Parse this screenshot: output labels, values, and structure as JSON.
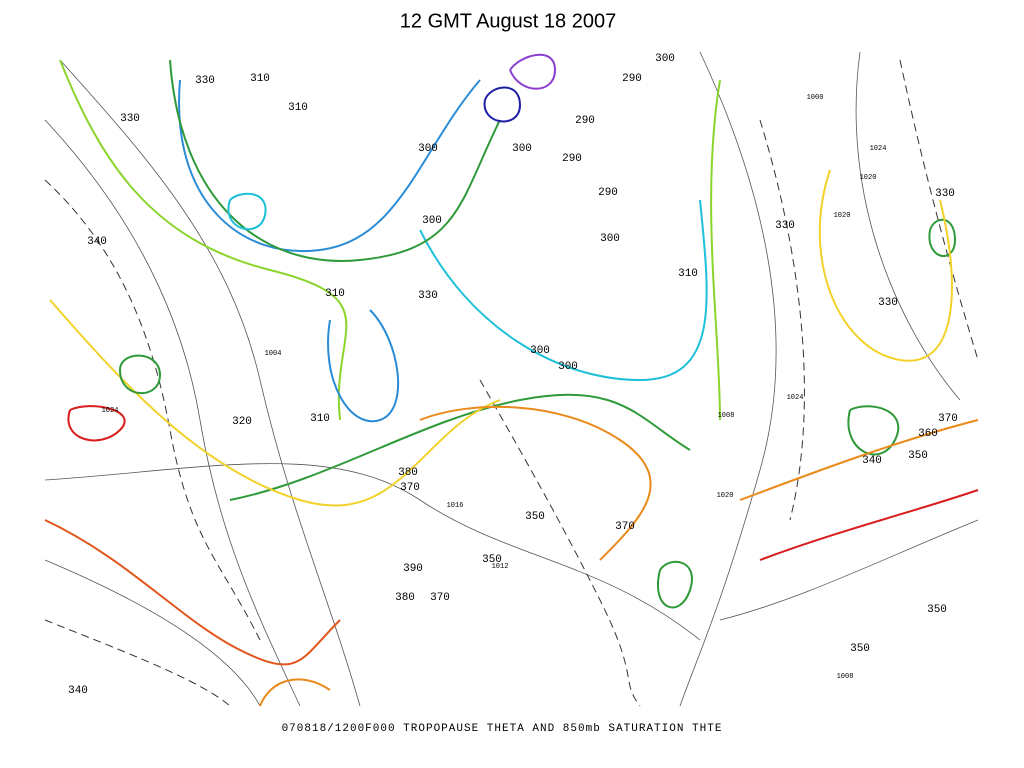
{
  "header": {
    "title": "12 GMT August 18 2007"
  },
  "map": {
    "contour_labels": [
      330,
      310,
      310,
      330,
      340,
      310,
      330,
      300,
      300,
      290,
      300,
      290,
      290,
      300,
      310,
      300,
      300,
      320,
      310,
      300,
      290,
      330,
      330,
      330,
      370,
      360,
      350,
      340,
      380,
      370,
      350,
      370,
      350,
      390,
      380,
      370,
      350,
      340,
      350
    ],
    "pressure_labels": [
      1024,
      1004,
      1020,
      1024,
      1008,
      1020,
      1020,
      1024,
      1000,
      1008,
      1016,
      1012
    ]
  },
  "footer": {
    "caption": "070818/1200F000 TROPOPAUSE THETA AND 850mb SATURATION THTE"
  }
}
